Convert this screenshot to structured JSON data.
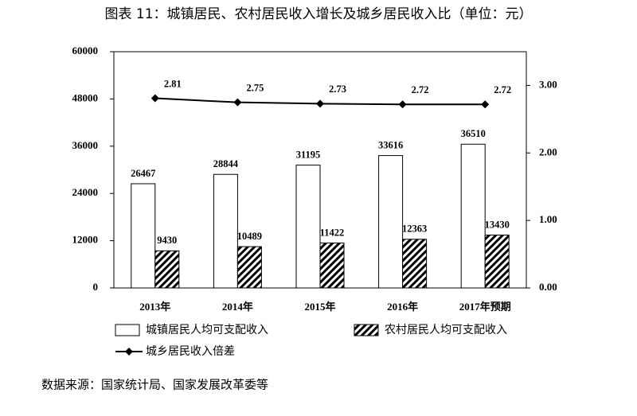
{
  "chart_data": {
    "type": "bar",
    "title": "图表 11：城镇居民、农村居民收入增长及城乡居民收入比（单位：元）",
    "source": "数据来源：国家统计局、国家发展改革委等",
    "categories": [
      "2013年",
      "2014年",
      "2015年",
      "2016年",
      "2017年预期"
    ],
    "series": [
      {
        "name": "城镇居民人均可支配收入",
        "color": "#ffffff",
        "values": [
          26467,
          28844,
          31195,
          33616,
          36510
        ]
      },
      {
        "name": "农村居民人均可支配收入",
        "color": "#000000",
        "pattern": "diagonal-hatch",
        "values": [
          9430,
          10489,
          11422,
          12363,
          13430
        ]
      },
      {
        "name": "城乡居民收入倍差",
        "color": "#000000",
        "axis": "y2",
        "marker": "diamond",
        "values": [
          2.81,
          2.75,
          2.73,
          2.72,
          2.72
        ]
      }
    ],
    "ylim": [
      0,
      60000
    ],
    "yticks": [
      0,
      12000,
      24000,
      36000,
      48000,
      60000
    ],
    "y2lim": [
      0,
      3.5
    ],
    "y2ticks": [
      {
        "value": 0,
        "label": "0.00"
      },
      {
        "value": 1,
        "label": "1.00"
      },
      {
        "value": 2,
        "label": "2.00"
      },
      {
        "value": 3,
        "label": "3.00"
      }
    ],
    "grid": false
  }
}
